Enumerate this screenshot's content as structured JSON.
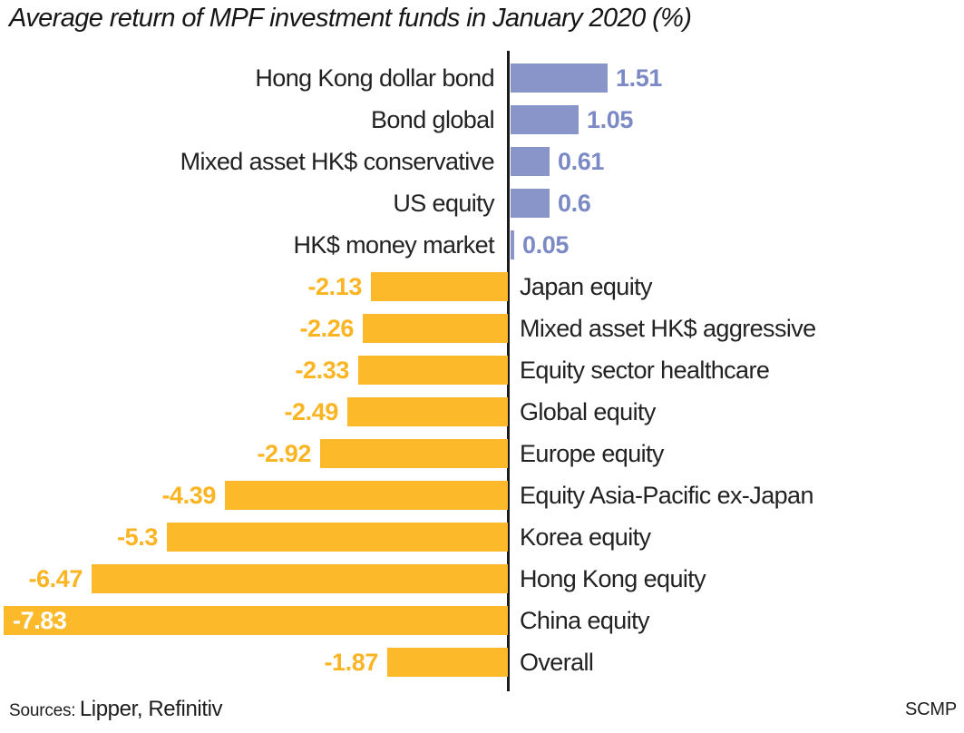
{
  "title": "Average return of MPF investment funds in January 2020 (%)",
  "footer": {
    "sources_label": "Sources:",
    "sources_value": "Lipper, Refinitiv",
    "credit": "SCMP"
  },
  "colors": {
    "positive_bar": "#8994c8",
    "positive_value_text": "#7b8ac5",
    "negative_bar": "#fcba2b",
    "negative_value_text": "#fbb422",
    "inside_value_text": "#ffffff",
    "axis_line": "#1a1a1a",
    "category_text": "#222222"
  },
  "chart_data": {
    "type": "bar",
    "orientation": "horizontal",
    "title": "Average return of MPF investment funds in January 2020 (%)",
    "xlabel": "",
    "ylabel": "",
    "xlim": [
      -7.9,
      1.6
    ],
    "grid": false,
    "legend": false,
    "value_labels_shown": true,
    "categories": [
      "Hong Kong dollar bond",
      "Bond global",
      "Mixed asset HK$ conservative",
      "US equity",
      "HK$ money market",
      "Japan equity",
      "Mixed asset HK$ aggressive",
      "Equity sector healthcare",
      "Global equity",
      "Europe equity",
      "Equity Asia-Pacific ex-Japan",
      "Korea equity",
      "Hong Kong equity",
      "China equity",
      "Overall"
    ],
    "values": [
      1.51,
      1.05,
      0.61,
      0.6,
      0.05,
      -2.13,
      -2.26,
      -2.33,
      -2.49,
      -2.92,
      -4.39,
      -5.3,
      -6.47,
      -7.83,
      -1.87
    ]
  }
}
